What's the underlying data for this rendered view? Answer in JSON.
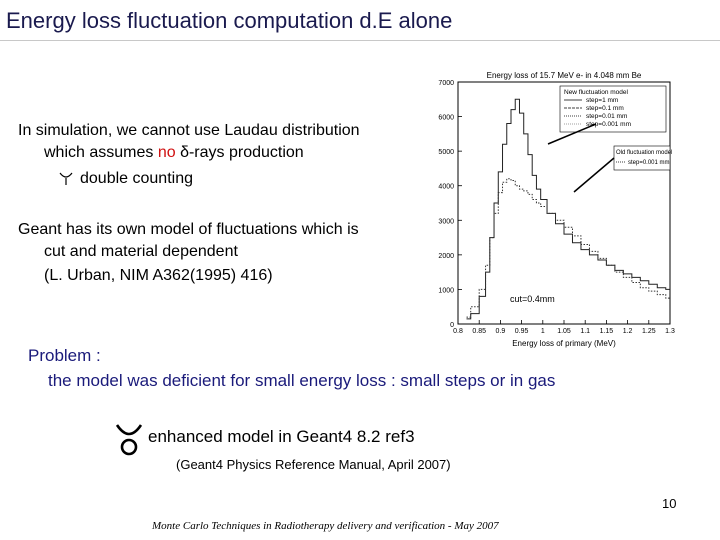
{
  "slide": {
    "title": "Energy loss fluctuation computation d.E alone",
    "para1_line1": "In simulation, we cannot use Laudau distribution",
    "para1_line2_pre": "which assumes ",
    "para1_line2_no": "no",
    "para1_line2_post": " δ-rays production",
    "para1_line3": "double counting",
    "para2_line1": "Geant has its own model of fluctuations which is",
    "para2_line2": "cut and material dependent",
    "para2_line3": "(L. Urban, NIM A362(1995) 416)",
    "problem_label": "Problem :",
    "problem_text": "the model was deficient for small energy loss : small steps or in gas",
    "enhanced_text": "enhanced model in Geant4 8.2 ref3",
    "manual_ref": "(Geant4 Physics Reference Manual, April 2007)",
    "page_number": "10",
    "footer": "Monte Carlo Techniques in Radiotherapy delivery and verification - May 2007",
    "colors": {
      "title": "#1a1a4e",
      "highlight": "#d01010",
      "problem": "#1a1a7a"
    }
  },
  "chart_data": {
    "type": "line",
    "title": "Energy loss of 15.7 MeV e- in 4.048 mm Be",
    "xlabel": "Energy loss of primary (MeV)",
    "ylabel": "",
    "xlim": [
      0.8,
      1.3
    ],
    "ylim": [
      0,
      7000
    ],
    "x_ticks": [
      "0.8",
      "0.85",
      "0.9",
      "0.95",
      "1",
      "1.05",
      "1.1",
      "1.15",
      "1.2",
      "1.25",
      "1.3"
    ],
    "y_ticks": [
      "0",
      "1000",
      "2000",
      "3000",
      "4000",
      "5000",
      "6000",
      "7000"
    ],
    "legend_new_title": "New fluctuation model",
    "legend_new": [
      "step=1    mm",
      "step=0.1   mm",
      "step=0.01  mm",
      "step=0.001 mm"
    ],
    "legend_old_title": "Old fluctuation model",
    "legend_old": [
      "step=0.001 mm"
    ],
    "annotation": "cut=0.4mm",
    "series": [
      {
        "name": "New model",
        "x": [
          0.82,
          0.84,
          0.86,
          0.87,
          0.88,
          0.89,
          0.9,
          0.91,
          0.92,
          0.93,
          0.94,
          0.95,
          0.96,
          0.97,
          0.98,
          0.99,
          1.0,
          1.02,
          1.04,
          1.06,
          1.08,
          1.1,
          1.12,
          1.14,
          1.16,
          1.18,
          1.2,
          1.22,
          1.24,
          1.26,
          1.28,
          1.3
        ],
        "y": [
          150,
          300,
          800,
          1500,
          2500,
          3500,
          4400,
          5200,
          5800,
          6200,
          6500,
          6100,
          5500,
          4900,
          4300,
          3900,
          3600,
          3200,
          2900,
          2600,
          2350,
          2150,
          2000,
          1850,
          1700,
          1550,
          1450,
          1350,
          1250,
          1150,
          1050,
          1000
        ]
      },
      {
        "name": "Old model",
        "x": [
          0.82,
          0.84,
          0.86,
          0.87,
          0.88,
          0.89,
          0.9,
          0.91,
          0.92,
          0.93,
          0.94,
          0.95,
          0.96,
          0.97,
          0.98,
          0.99,
          1.0,
          1.02,
          1.04,
          1.06,
          1.08,
          1.1,
          1.12,
          1.14,
          1.16,
          1.18,
          1.2,
          1.22,
          1.24,
          1.26,
          1.28,
          1.3
        ],
        "y": [
          200,
          500,
          1000,
          1700,
          2500,
          3200,
          3800,
          4100,
          4200,
          4150,
          4000,
          3900,
          3850,
          3750,
          3600,
          3500,
          3400,
          3200,
          3000,
          2800,
          2550,
          2300,
          2100,
          1900,
          1700,
          1500,
          1350,
          1200,
          1050,
          950,
          850,
          750
        ]
      }
    ]
  }
}
